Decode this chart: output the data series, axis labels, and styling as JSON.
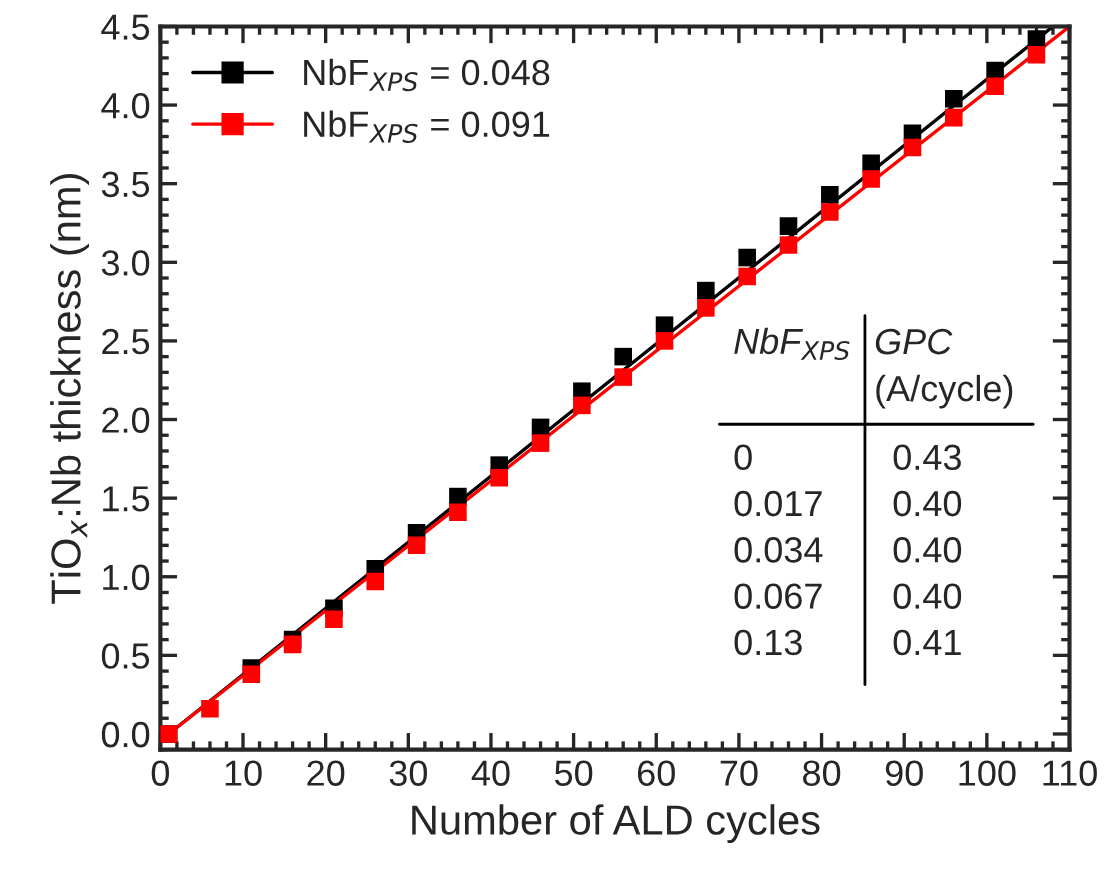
{
  "chart_data": {
    "type": "scatter",
    "xlabel": "Number of ALD cycles",
    "ylabel": "TiO$_{x}$:Nb thickness (nm)",
    "x": [
      1,
      6,
      11,
      16,
      21,
      26,
      31,
      36,
      41,
      46,
      51,
      56,
      61,
      66,
      71,
      76,
      81,
      86,
      91,
      96,
      101,
      106
    ],
    "series": [
      {
        "name": "NbF$_{XPS}$ = 0.048",
        "color": "#000000",
        "marker": "square",
        "values": [
          0.0,
          null,
          0.42,
          0.6,
          0.8,
          1.05,
          1.28,
          1.51,
          1.71,
          1.95,
          2.18,
          2.4,
          2.6,
          2.82,
          3.03,
          3.23,
          3.43,
          3.63,
          3.82,
          4.04,
          4.22,
          4.42
        ]
      },
      {
        "name": "NbF$_{XPS}$ = 0.091",
        "color": "#ff0000",
        "marker": "square",
        "values": [
          0.0,
          0.16,
          0.38,
          0.57,
          0.73,
          0.97,
          1.2,
          1.41,
          1.63,
          1.85,
          2.09,
          2.27,
          2.5,
          2.71,
          2.91,
          3.11,
          3.32,
          3.53,
          3.73,
          3.92,
          4.12,
          4.32
        ]
      },
      {
        "type": "line",
        "color": "#000000",
        "x": [
          1,
          108
        ],
        "values": [
          0.0,
          4.5
        ]
      },
      {
        "type": "line",
        "color": "#ff0000",
        "x": [
          1,
          110
        ],
        "values": [
          0.0,
          4.5
        ]
      }
    ],
    "xlim": [
      0,
      110
    ],
    "xticks": [
      0,
      10,
      20,
      30,
      40,
      50,
      60,
      70,
      80,
      90,
      100,
      110
    ],
    "ylim": [
      -0.1,
      4.5
    ],
    "yticks": [
      {
        "value": 0,
        "label": "0.0"
      },
      {
        "value": 0.5,
        "label": "0.5"
      },
      {
        "value": 1,
        "label": "1.0"
      },
      {
        "value": 1.5,
        "label": "1.5"
      },
      {
        "value": 2,
        "label": "2.0"
      },
      {
        "value": 2.5,
        "label": "2.5"
      },
      {
        "value": 3,
        "label": "3.0"
      },
      {
        "value": 3.5,
        "label": "3.5"
      },
      {
        "value": 4,
        "label": "4.0"
      },
      {
        "value": 4.5,
        "label": "4.5"
      }
    ],
    "legend": "top left",
    "grid": false,
    "annotations": [
      "NbF$_{XPS}$",
      "GPC",
      "(A/cycle)",
      "0",
      "0.43",
      "0.017",
      "0.40",
      "0.034",
      "0.40",
      "0.067",
      "0.40",
      "0.13",
      "0.41"
    ]
  }
}
